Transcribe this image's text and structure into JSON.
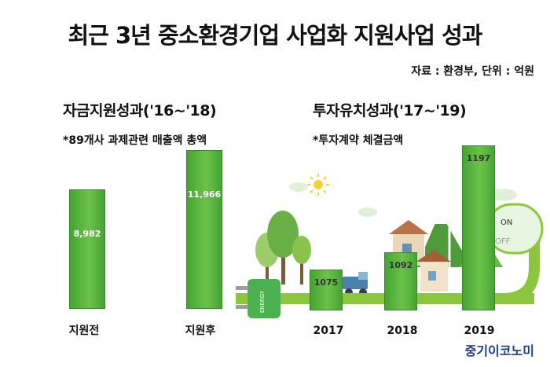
{
  "title": "최근 3년 중소환경기업 사업화 지원사업 성과",
  "source": "자료 : 환경부, 단위 : 억원",
  "brand": "중기이코노미",
  "chart_data": [
    {
      "type": "bar",
      "title": "자금지원성과('16~'18)",
      "note": "*89개사 과제관련 매출액 총액",
      "categories": [
        "지원전",
        "지원후"
      ],
      "values": [
        8982,
        11966
      ],
      "value_labels": [
        "8,982",
        "11,966"
      ],
      "ylim": [
        0,
        13000
      ]
    },
    {
      "type": "bar",
      "title": "투자유치성과('17~'19)",
      "note": "*투자계약 체결금액",
      "categories": [
        "2017",
        "2018",
        "2019"
      ],
      "values": [
        1075,
        1092,
        1197
      ],
      "value_labels": [
        "1075",
        "1092",
        "1197"
      ],
      "colors": {
        "bar": "#5cb83f",
        "ground": "#8cc63f"
      },
      "switch_labels": [
        "ON",
        "OFF"
      ],
      "plug_label": "ENERGY"
    }
  ]
}
